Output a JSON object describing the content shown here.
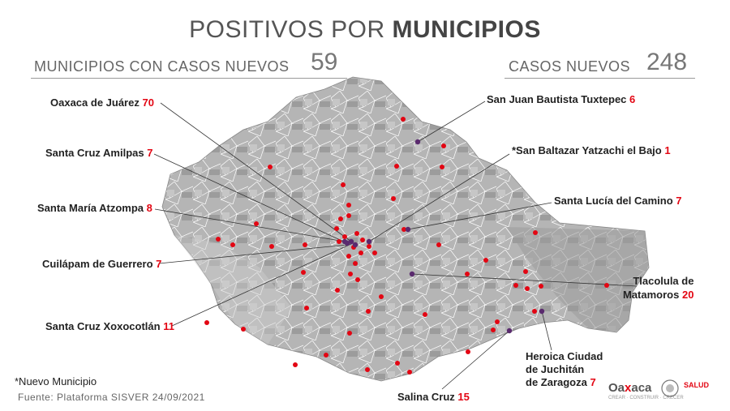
{
  "header": {
    "title_light": "POSITIVOS POR",
    "title_bold": "MUNICIPIOS"
  },
  "stats": {
    "municipios_label": "MUNICIPIOS CON CASOS NUEVOS",
    "municipios_value": "59",
    "casos_label": "CASOS NUEVOS",
    "casos_value": "248"
  },
  "labels": [
    {
      "name": "Oaxaca de Juárez",
      "count": "70"
    },
    {
      "name": "Santa Cruz Amilpas",
      "count": "7"
    },
    {
      "name": "Santa María Atzompa",
      "count": "8"
    },
    {
      "name": "Cuilápam de Guerrero",
      "count": "7"
    },
    {
      "name": "Santa Cruz Xoxocotlán",
      "count": "11"
    },
    {
      "name": "San Juan Bautista Tuxtepec",
      "count": "6"
    },
    {
      "name": "*San Baltazar Yatzachi el Bajo",
      "count": "1"
    },
    {
      "name": "Santa Lucía del Camino",
      "count": "7"
    },
    {
      "name_line1": "Tlacolula de",
      "name_line2": "Matamoros",
      "count": "20"
    },
    {
      "name_line1": "Heroica Ciudad",
      "name_line2": "de Juchitán",
      "name_line3": "de Zaragoza",
      "count": "7"
    },
    {
      "name": "Salina Cruz",
      "count": "15"
    }
  ],
  "footer": {
    "note": "*Nuevo Municipio",
    "source": "Fuente: Plataforma SISVER 24/09/2021"
  },
  "logos": {
    "oaxaca_a": "Oa",
    "oaxaca_x": "x",
    "oaxaca_b": "aca",
    "oaxaca_sub": "CREAR · CONSTRUIR · CRECER",
    "salud": "SALUD"
  },
  "colors": {
    "accent": "#e30613",
    "map_fill": "#a9a9a9",
    "map_border": "#ffffff"
  }
}
